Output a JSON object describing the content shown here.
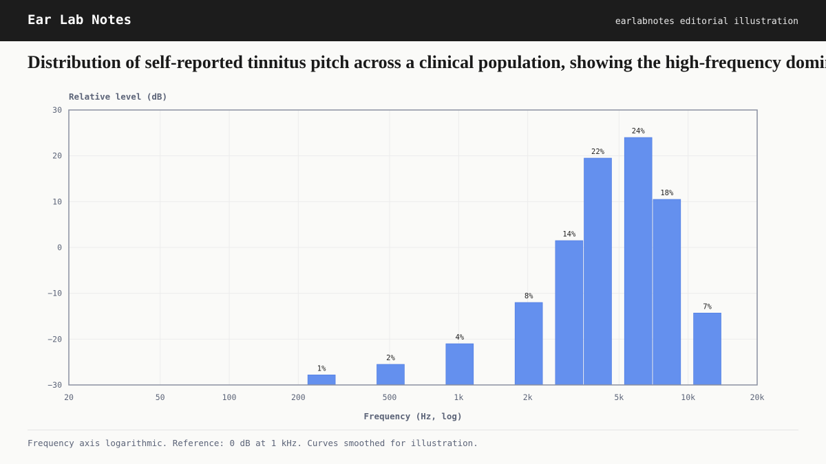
{
  "header": {
    "brand": "Ear Lab Notes",
    "tagline": "earlabnotes editorial illustration"
  },
  "headline": "Distribution of self-reported tinnitus pitch across a clinical population, showing the high-frequency dominance",
  "caption": "Frequency axis logarithmic. Reference: 0 dB at 1 kHz. Curves smoothed for illustration.",
  "colors": {
    "bar": "#6490ee",
    "bar_edge": "#4a78e0",
    "grid": "#ececec",
    "frame": "#8a90a0"
  },
  "chart_data": {
    "type": "bar",
    "xscale": "log",
    "xlabel": "Frequency (Hz, log)",
    "ylabel": "Relative level (dB)",
    "xlim": [
      20,
      20000
    ],
    "ylim": [
      -30,
      30
    ],
    "grid": true,
    "x_ticks": [
      {
        "value": 20,
        "label": "20"
      },
      {
        "value": 50,
        "label": "50"
      },
      {
        "value": 100,
        "label": "100"
      },
      {
        "value": 200,
        "label": "200"
      },
      {
        "value": 500,
        "label": "500"
      },
      {
        "value": 1000,
        "label": "1k"
      },
      {
        "value": 2000,
        "label": "2k"
      },
      {
        "value": 5000,
        "label": "5k"
      },
      {
        "value": 10000,
        "label": "10k"
      },
      {
        "value": 20000,
        "label": "20k"
      }
    ],
    "y_ticks": [
      {
        "value": 30,
        "label": "30"
      },
      {
        "value": 20,
        "label": "20"
      },
      {
        "value": 10,
        "label": "10"
      },
      {
        "value": 0,
        "label": "0"
      },
      {
        "value": -10,
        "label": "−10"
      },
      {
        "value": -20,
        "label": "−20"
      },
      {
        "value": -30,
        "label": "−30"
      }
    ],
    "bars": [
      {
        "x_start": 220,
        "x_end": 290,
        "value": -27.8,
        "label": "1%"
      },
      {
        "x_start": 440,
        "x_end": 580,
        "value": -25.5,
        "label": "2%"
      },
      {
        "x_start": 880,
        "x_end": 1160,
        "value": -21.0,
        "label": "4%"
      },
      {
        "x_start": 1760,
        "x_end": 2320,
        "value": -12.0,
        "label": "8%"
      },
      {
        "x_start": 2640,
        "x_end": 3480,
        "value": 1.5,
        "label": "14%"
      },
      {
        "x_start": 3520,
        "x_end": 4640,
        "value": 19.5,
        "label": "22%"
      },
      {
        "x_start": 5280,
        "x_end": 6960,
        "value": 24.0,
        "label": "24%"
      },
      {
        "x_start": 7040,
        "x_end": 9280,
        "value": 10.5,
        "label": "18%"
      },
      {
        "x_start": 10560,
        "x_end": 13920,
        "value": -14.3,
        "label": "7%"
      }
    ]
  }
}
